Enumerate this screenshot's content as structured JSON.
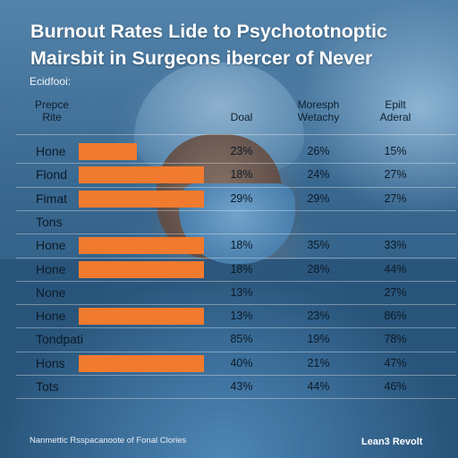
{
  "title": "Burnout Rates Lide to Psychototnoptic Mairsbit in Surgeons ibercer of Never",
  "subheading": "Ecidfooi:",
  "footer_left": "Nanmettic Rsspacanoote of Fonal Clories",
  "footer_right": "Lean3 Revolt",
  "colors": {
    "bar": "#f07a2e",
    "text": "#0d1b28",
    "title": "#ffffff"
  },
  "chart_data": {
    "type": "table",
    "title": "Burnout Rates Lide to Psychototnoptic Mairsbit in Surgeons ibercer of Never",
    "columns": [
      {
        "name": "Prepce Rite",
        "line1": "Prepce",
        "line2": "Rite"
      },
      {
        "name": "Doal",
        "line1": "",
        "line2": "Doal"
      },
      {
        "name": "Moresph Wetachy",
        "line1": "Moresph",
        "line2": "Wetachy"
      },
      {
        "name": "Epilt Aderal",
        "line1": "Epilt",
        "line2": "Aderal"
      }
    ],
    "bars": [
      {
        "label": "Hone",
        "bar_pct": 50
      },
      {
        "label": "Flond",
        "bar_pct": 108
      },
      {
        "label": "Fimat",
        "bar_pct": 108
      },
      {
        "label": "Tons",
        "bar_pct": 0
      },
      {
        "label": "Hone",
        "bar_pct": 108
      },
      {
        "label": "Hone",
        "bar_pct": 108
      },
      {
        "label": "None",
        "bar_pct": 0
      },
      {
        "label": "Hone",
        "bar_pct": 108
      },
      {
        "label": "Tondpati",
        "bar_pct": 0
      },
      {
        "label": "Hons",
        "bar_pct": 108
      },
      {
        "label": "Tots",
        "bar_pct": 0
      }
    ],
    "rows": [
      {
        "label": "Hone",
        "doal": "23%",
        "moresph": "26%",
        "epilt": "15%"
      },
      {
        "label": "Flond",
        "doal": "18%",
        "moresph": "24%",
        "epilt": "27%"
      },
      {
        "label": "Fimat",
        "doal": "29%",
        "moresph": "29%",
        "epilt": "27%"
      },
      {
        "label": "Tons",
        "doal": "",
        "moresph": "",
        "epilt": ""
      },
      {
        "label": "Hone",
        "doal": "18%",
        "moresph": "35%",
        "epilt": "33%"
      },
      {
        "label": "Hone",
        "doal": "18%",
        "moresph": "28%",
        "epilt": "44%"
      },
      {
        "label": "None",
        "doal": "13%",
        "moresph": "",
        "epilt": "27%"
      },
      {
        "label": "Hone",
        "doal": "13%",
        "moresph": "23%",
        "epilt": "86%"
      },
      {
        "label": "Tondpati",
        "doal": "85%",
        "moresph": "19%",
        "epilt": "78%"
      },
      {
        "label": "Hons",
        "doal": "40%",
        "moresph": "21%",
        "epilt": "47%"
      },
      {
        "label": "Tots",
        "doal": "43%",
        "moresph": "44%",
        "epilt": "46%"
      }
    ]
  }
}
